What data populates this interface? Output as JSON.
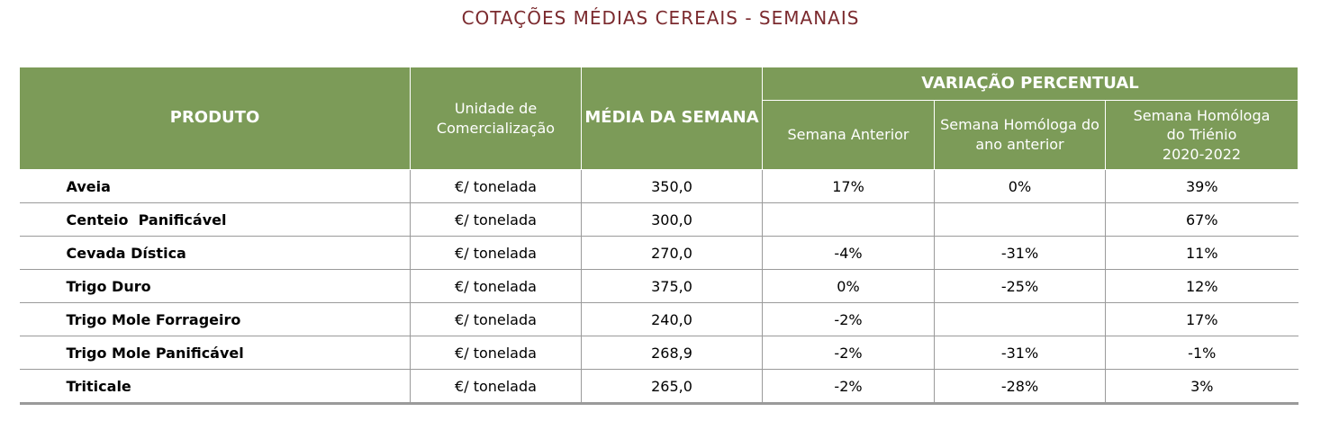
{
  "title": "COTAÇÕES MÉDIAS CEREAIS - SEMANAIS",
  "header": {
    "produto": "PRODUTO",
    "unidade": "Unidade de Comercialização",
    "media": "MÉDIA DA SEMANA",
    "variacao": "VARIAÇÃO PERCENTUAL",
    "semana_anterior": "Semana Anterior",
    "homologa_ano": "Semana Homóloga do ano anterior",
    "homologa_trienio_line1": "Semana Homóloga",
    "homologa_trienio_line2": "do Triénio",
    "homologa_trienio_line3": "2020-2022"
  },
  "rows": [
    {
      "produto": "Aveia",
      "unidade": "€/ tonelada",
      "media": "350,0",
      "anterior": "17%",
      "ano": "0%",
      "trienio": "39%"
    },
    {
      "produto": "Centeio  Panificável",
      "unidade": "€/ tonelada",
      "media": "300,0",
      "anterior": "",
      "ano": "",
      "trienio": "67%"
    },
    {
      "produto": "Cevada Dística",
      "unidade": "€/ tonelada",
      "media": "270,0",
      "anterior": "-4%",
      "ano": "-31%",
      "trienio": "11%"
    },
    {
      "produto": "Trigo Duro",
      "unidade": "€/ tonelada",
      "media": "375,0",
      "anterior": "0%",
      "ano": "-25%",
      "trienio": "12%"
    },
    {
      "produto": "Trigo Mole Forrageiro",
      "unidade": "€/ tonelada",
      "media": "240,0",
      "anterior": "-2%",
      "ano": "",
      "trienio": "17%"
    },
    {
      "produto": "Trigo Mole Panificável",
      "unidade": "€/ tonelada",
      "media": "268,9",
      "anterior": "-2%",
      "ano": "-31%",
      "trienio": "-1%"
    },
    {
      "produto": "Triticale",
      "unidade": "€/ tonelada",
      "media": "265,0",
      "anterior": "-2%",
      "ano": "-28%",
      "trienio": "3%"
    }
  ]
}
